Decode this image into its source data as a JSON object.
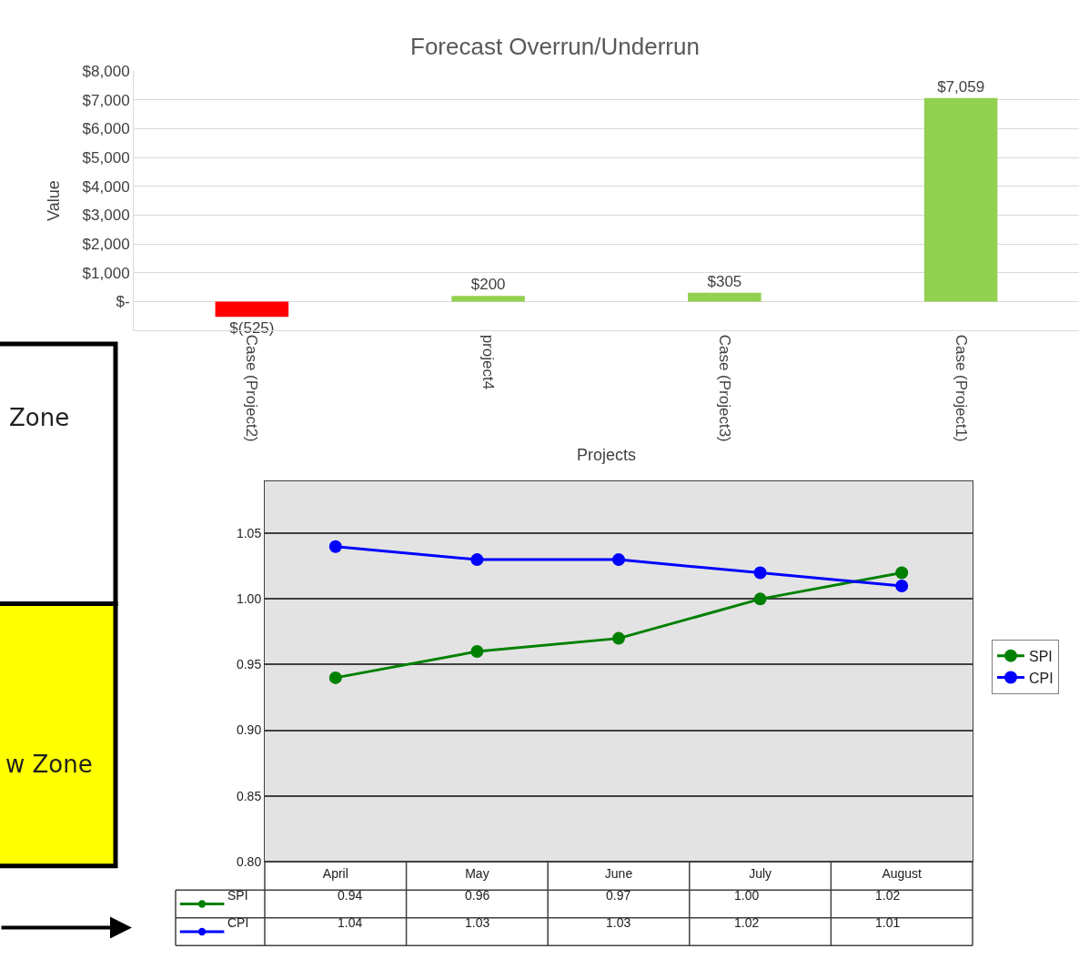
{
  "chart_data": [
    {
      "type": "bar",
      "title": "Forecast Overrun/Underrun",
      "xlabel": "Projects",
      "ylabel": "Value",
      "categories": [
        "Case (Project2)",
        "project4",
        "Case (Project3)",
        "Case (Project1)"
      ],
      "values": [
        -525,
        200,
        305,
        7059
      ],
      "colors": [
        "#ff0000",
        "#92d050",
        "#92d050",
        "#92d050"
      ],
      "value_labels": [
        "$(525)",
        "$200",
        "$305",
        "$7,059"
      ],
      "ylim": [
        -1000,
        8000
      ],
      "yticks": [
        {
          "value": -1000,
          "label": null
        },
        {
          "value": 0,
          "label": "$-"
        },
        {
          "value": 1000,
          "label": "$1,000"
        },
        {
          "value": 2000,
          "label": "$2,000"
        },
        {
          "value": 3000,
          "label": "$3,000"
        },
        {
          "value": 4000,
          "label": "$4,000"
        },
        {
          "value": 5000,
          "label": "$5,000"
        },
        {
          "value": 6000,
          "label": "$6,000"
        },
        {
          "value": 7000,
          "label": "$7,000"
        },
        {
          "value": 8000,
          "label": "$8,000"
        }
      ],
      "grid": "y",
      "legend": false
    },
    {
      "type": "line",
      "categories": [
        "April",
        "May",
        "June",
        "July",
        "August"
      ],
      "series": [
        {
          "name": "SPI",
          "color": "#008000",
          "values": [
            0.94,
            0.96,
            0.97,
            1.0,
            1.02
          ],
          "value_labels": [
            "0.94",
            "0.96",
            "0.97",
            "1.00",
            "1.02"
          ]
        },
        {
          "name": "CPI",
          "color": "#0000ff",
          "values": [
            1.04,
            1.03,
            1.03,
            1.02,
            1.01
          ],
          "value_labels": [
            "1.04",
            "1.03",
            "1.03",
            "1.02",
            "1.01"
          ]
        }
      ],
      "ylim": [
        0.8,
        1.09
      ],
      "yticks": [
        {
          "value": 0.8,
          "label": "0.80"
        },
        {
          "value": 0.85,
          "label": "0.85"
        },
        {
          "value": 0.9,
          "label": "0.90"
        },
        {
          "value": 0.95,
          "label": "0.95"
        },
        {
          "value": 1.0,
          "label": "1.00"
        },
        {
          "value": 1.05,
          "label": "1.05"
        }
      ],
      "grid": "y",
      "legend": "right",
      "marker": "circle",
      "line_style": "solid"
    },
    {
      "type": "other",
      "annotations": [
        "Zone",
        "w Zone"
      ]
    }
  ]
}
